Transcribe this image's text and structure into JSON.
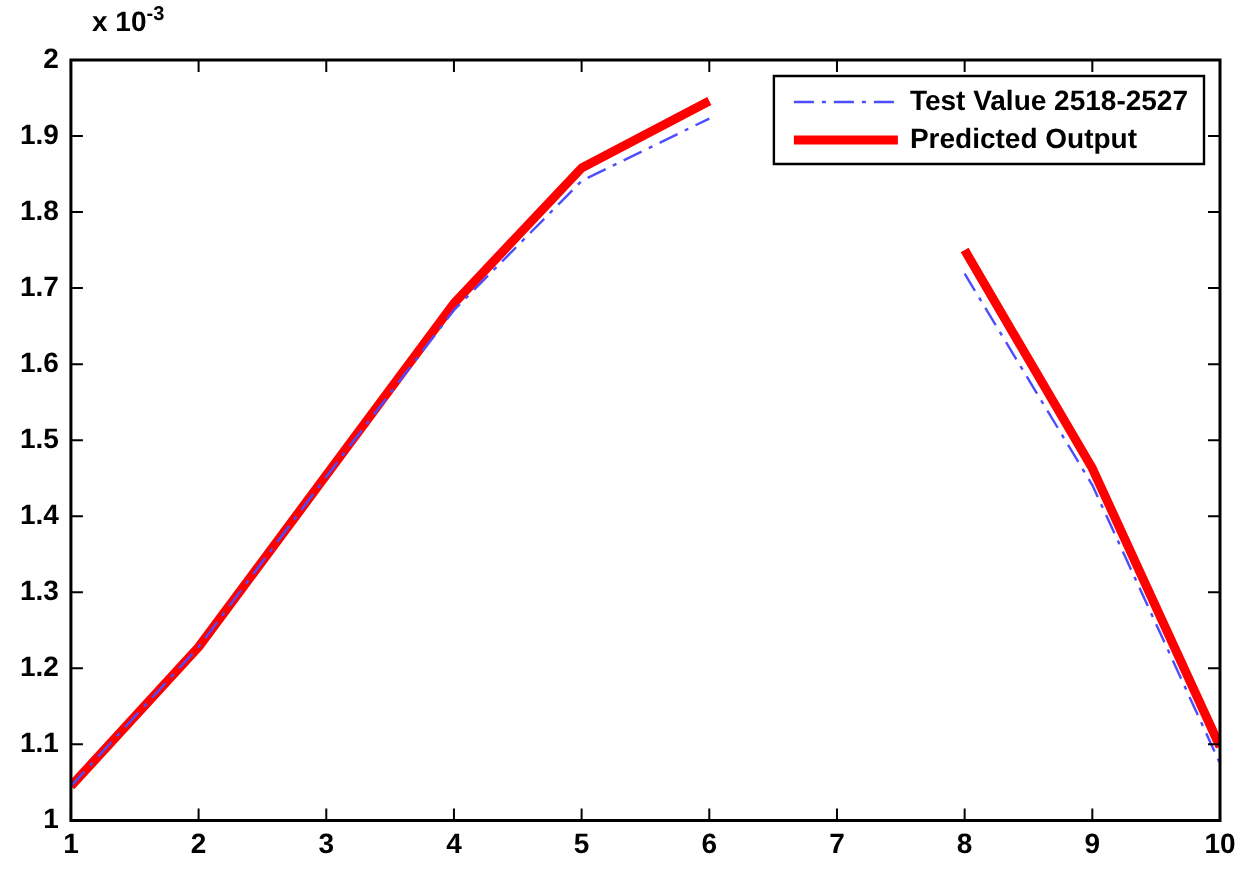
{
  "chart_data": {
    "type": "line",
    "x": [
      1,
      2,
      3,
      4,
      5,
      6,
      7,
      8,
      9,
      10
    ],
    "series": [
      {
        "name": "Test Value 2518-2527",
        "color": "#4d4dff",
        "line_style": "dashdot",
        "values": [
          1.045,
          1.228,
          1.452,
          1.671,
          1.841,
          1.923,
          null,
          1.719,
          1.441,
          1.075
        ]
      },
      {
        "name": "Predicted Output",
        "color": "#ff0000",
        "line_style": "solid",
        "values": [
          1.045,
          1.228,
          1.454,
          1.68,
          1.858,
          1.946,
          null,
          1.75,
          1.463,
          1.097
        ]
      }
    ],
    "xlim": [
      1,
      10
    ],
    "xticks": [
      1,
      2,
      3,
      4,
      5,
      6,
      7,
      8,
      9,
      10
    ],
    "ylim": [
      1,
      2
    ],
    "yticks": [
      1,
      1.1,
      1.2,
      1.3,
      1.4,
      1.5,
      1.6,
      1.7,
      1.8,
      1.9,
      2
    ],
    "annotations": [
      "x 10$^{-3}$"
    ],
    "legend": "top right",
    "grid": false,
    "marker": "none"
  }
}
